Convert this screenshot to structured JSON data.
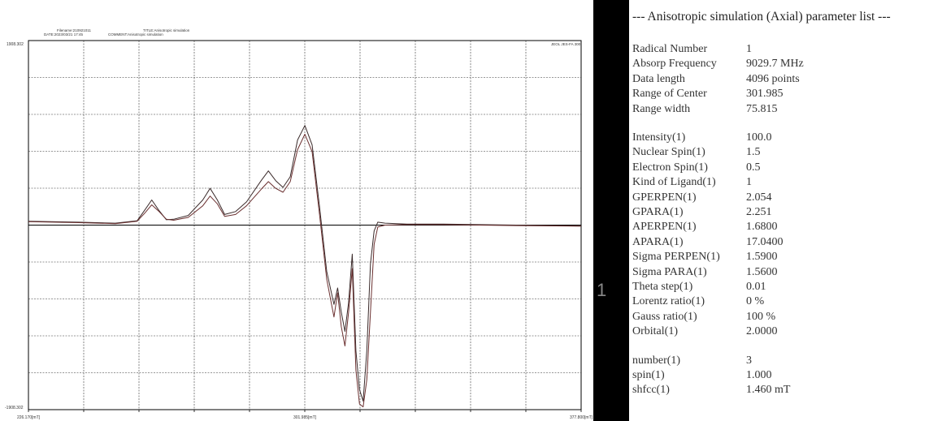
{
  "header": {
    "filename": "Filename:210921011",
    "date": "DATE:2023/03/21 17:45",
    "title": "TITLE:Anisotropic simulation",
    "comment": "COMMENT:Anisotropic simulation",
    "right": "JEOL JES-FA 300"
  },
  "chart_data": {
    "type": "line",
    "x_ticks": [
      "226.170[mT]",
      "301.985[mT]",
      "377.800[mT]"
    ],
    "y_ticks": [
      "1908.302",
      "-1908.302"
    ],
    "xlim": [
      226.17,
      377.8
    ],
    "ylim": [
      -1908.302,
      1908.302
    ],
    "grid": true,
    "colors": [
      "#3a2a2a",
      "#6b3030"
    ],
    "series": [
      {
        "x": [
          226.17,
          240,
          250,
          256,
          258,
          260,
          262,
          264,
          266,
          270,
          274,
          276,
          278,
          280,
          283,
          286,
          290,
          292,
          294,
          296,
          298,
          300,
          302,
          304,
          306,
          308,
          310,
          311,
          312,
          313,
          314,
          315,
          316,
          317,
          318,
          319,
          320,
          321,
          322,
          324,
          330,
          340,
          360,
          377.8
        ],
        "values": [
          40,
          30,
          20,
          45,
          150,
          260,
          150,
          55,
          60,
          100,
          260,
          380,
          260,
          110,
          140,
          240,
          460,
          560,
          460,
          390,
          500,
          880,
          1030,
          830,
          200,
          -480,
          -820,
          -650,
          -900,
          -1100,
          -800,
          -300,
          -1300,
          -1700,
          -1820,
          -1300,
          -400,
          -60,
          30,
          20,
          10,
          10,
          0,
          -10
        ]
      },
      {
        "x": [
          226.17,
          240,
          250,
          256,
          258,
          260,
          262,
          264,
          266,
          270,
          274,
          276,
          278,
          280,
          283,
          286,
          290,
          292,
          294,
          296,
          298,
          300,
          302,
          304,
          306,
          308,
          310,
          311,
          312,
          313,
          314,
          315,
          316,
          317,
          318,
          319,
          320,
          321,
          322,
          324,
          330,
          340,
          360,
          377.8
        ],
        "values": [
          35,
          25,
          15,
          40,
          120,
          210,
          140,
          60,
          50,
          80,
          200,
          300,
          220,
          90,
          110,
          200,
          370,
          450,
          380,
          340,
          450,
          780,
          940,
          760,
          120,
          -560,
          -950,
          -700,
          -1050,
          -1250,
          -900,
          -450,
          -1500,
          -1850,
          -1880,
          -1600,
          -900,
          -200,
          -20,
          0,
          5,
          5,
          -5,
          -10
        ]
      }
    ]
  },
  "panel": {
    "title": "--- Anisotropic simulation (Axial) parameter list ---",
    "separator": "1",
    "params": [
      {
        "label": "Radical Number",
        "value": "1"
      },
      {
        "label": "Absorp Frequency",
        "value": "9029.7 MHz"
      },
      {
        "label": "Data length",
        "value": "4096 points"
      },
      {
        "label": "Range of Center",
        "value": "301.985"
      },
      {
        "label": "Range width",
        "value": "75.815"
      },
      {
        "label": "Intensity(1)",
        "value": "100.0"
      },
      {
        "label": "Nuclear Spin(1)",
        "value": "1.5"
      },
      {
        "label": "Electron Spin(1)",
        "value": "0.5"
      },
      {
        "label": "Kind of Ligand(1)",
        "value": "1"
      },
      {
        "label": "GPERPEN(1)",
        "value": "2.054"
      },
      {
        "label": "GPARA(1)",
        "value": "2.251"
      },
      {
        "label": "APERPEN(1)",
        "value": "1.6800"
      },
      {
        "label": "APARA(1)",
        "value": "17.0400"
      },
      {
        "label": "Sigma PERPEN(1)",
        "value": "1.5900"
      },
      {
        "label": "Sigma PARA(1)",
        "value": "1.5600"
      },
      {
        "label": "Theta step(1)",
        "value": "0.01"
      },
      {
        "label": "Lorentz ratio(1)",
        "value": "0 %"
      },
      {
        "label": "Gauss ratio(1)",
        "value": "100 %"
      },
      {
        "label": "Orbital(1)",
        "value": "2.0000"
      },
      {
        "label": "number(1)",
        "value": "3"
      },
      {
        "label": "spin(1)",
        "value": "1.000"
      },
      {
        "label": "shfcc(1)",
        "value": "1.460 mT"
      }
    ]
  }
}
